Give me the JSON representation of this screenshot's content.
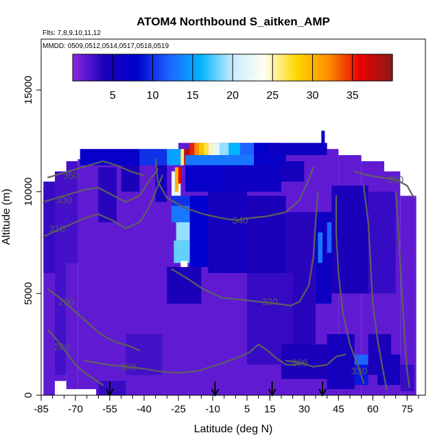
{
  "chart_data": {
    "type": "heatmap",
    "title": "ATOM4 Northbound S_aitken_AMP",
    "flights_label": "Flts: 7,8,9,10,11,12",
    "mmdd_label": "MMDD: 0509,0512,0514,0517,0518,0519",
    "xlabel": "Latitude (deg N)",
    "ylabel": "Altitude (m)",
    "xlim": [
      -85,
      83
    ],
    "ylim": [
      0,
      17500
    ],
    "x_ticks": [
      -85,
      -70,
      -55,
      -40,
      -25,
      -10,
      5,
      15,
      30,
      45,
      60,
      75
    ],
    "x_tick_labels": [
      "-85",
      "-70",
      "-55",
      "-40",
      "-25",
      "-10",
      "5",
      "15",
      "30",
      "45",
      "60",
      "75"
    ],
    "y_ticks": [
      0,
      5000,
      10000,
      15000
    ],
    "y_tick_labels": [
      "0",
      "5000",
      "10000",
      "15000"
    ],
    "colorbar": {
      "range": [
        0,
        40
      ],
      "ticks": [
        5,
        10,
        15,
        20,
        25,
        30,
        35
      ],
      "tick_labels": [
        "5",
        "10",
        "15",
        "20",
        "25",
        "30",
        "35"
      ],
      "colors": [
        "#8a2be2",
        "#1a00b8",
        "#0000cd",
        "#1e64ff",
        "#00b4ff",
        "#c8ecff",
        "#fffff0",
        "#ffd700",
        "#ff8c00",
        "#e60000",
        "#8b1a1a"
      ]
    },
    "background_value": 1.5,
    "cells": [
      {
        "x0": -84,
        "x1": -79,
        "y0": 6000,
        "y1": 10500,
        "v": 3
      },
      {
        "x0": -79,
        "x1": -74,
        "y0": 1000,
        "y1": 11000,
        "v": 2.5
      },
      {
        "x0": -74,
        "x1": -69,
        "y0": 6500,
        "y1": 11500,
        "v": 2.5
      },
      {
        "x0": -60,
        "x1": -52,
        "y0": 8500,
        "y1": 11200,
        "v": 3.5
      },
      {
        "x0": -50,
        "x1": -42,
        "y0": 10000,
        "y1": 11800,
        "v": 4
      },
      {
        "x0": -68,
        "x1": -42,
        "y0": 11300,
        "y1": 12100,
        "v": 7
      },
      {
        "x0": -42,
        "x1": -30,
        "y0": 11300,
        "y1": 12100,
        "v": 10
      },
      {
        "x0": -30,
        "x1": -23,
        "y0": 11300,
        "y1": 12100,
        "v": 15
      },
      {
        "x0": -35,
        "x1": -30,
        "y0": 9500,
        "y1": 11300,
        "v": 5
      },
      {
        "x0": -28,
        "x1": -24,
        "y0": 9800,
        "y1": 11000,
        "v": 22
      },
      {
        "x0": -26.5,
        "x1": -25,
        "y0": 10000,
        "y1": 11200,
        "v": 30
      },
      {
        "x0": -25,
        "x1": -23.5,
        "y0": 10400,
        "y1": 11200,
        "v": 36
      },
      {
        "x0": -24,
        "x1": -22.5,
        "y0": 11300,
        "y1": 12100,
        "v": 26
      },
      {
        "x0": -22.5,
        "x1": -20,
        "y0": 11300,
        "y1": 12100,
        "v": 38
      },
      {
        "x0": -20,
        "x1": -18,
        "y0": 11800,
        "y1": 12400,
        "v": 35
      },
      {
        "x0": -18,
        "x1": -16,
        "y0": 11800,
        "y1": 12400,
        "v": 32
      },
      {
        "x0": -16,
        "x1": -14,
        "y0": 11800,
        "y1": 12400,
        "v": 29
      },
      {
        "x0": -14,
        "x1": -12,
        "y0": 11800,
        "y1": 12400,
        "v": 27
      },
      {
        "x0": -12,
        "x1": -10,
        "y0": 11800,
        "y1": 12400,
        "v": 25
      },
      {
        "x0": -10,
        "x1": -7,
        "y0": 11800,
        "y1": 12400,
        "v": 22
      },
      {
        "x0": -7,
        "x1": -3,
        "y0": 11800,
        "y1": 12400,
        "v": 19
      },
      {
        "x0": -3,
        "x1": 2,
        "y0": 11800,
        "y1": 12400,
        "v": 16
      },
      {
        "x0": 2,
        "x1": 8,
        "y0": 11800,
        "y1": 12400,
        "v": 12
      },
      {
        "x0": 8,
        "x1": 14,
        "y0": 11800,
        "y1": 12400,
        "v": 8
      },
      {
        "x0": 14,
        "x1": 40,
        "y0": 11800,
        "y1": 12400,
        "v": 6
      },
      {
        "x0": -22,
        "x1": 8,
        "y0": 11300,
        "y1": 11800,
        "v": 13
      },
      {
        "x0": 8,
        "x1": 22,
        "y0": 11300,
        "y1": 11800,
        "v": 7
      },
      {
        "x0": -22,
        "x1": -5,
        "y0": 10000,
        "y1": 11300,
        "v": 7
      },
      {
        "x0": -5,
        "x1": 20,
        "y0": 10000,
        "y1": 11300,
        "v": 6
      },
      {
        "x0": 20,
        "x1": 30,
        "y0": 10500,
        "y1": 11500,
        "v": 5
      },
      {
        "x0": -28,
        "x1": -20,
        "y0": 9300,
        "y1": 9800,
        "v": 10
      },
      {
        "x0": -28,
        "x1": -20,
        "y0": 8500,
        "y1": 9300,
        "v": 13
      },
      {
        "x0": -26,
        "x1": -20,
        "y0": 7600,
        "y1": 8500,
        "v": 19
      },
      {
        "x0": -27,
        "x1": -20,
        "y0": 6500,
        "y1": 7600,
        "v": 18
      },
      {
        "x0": -24,
        "x1": -21,
        "y0": 6100,
        "y1": 6600,
        "v": 24
      },
      {
        "x0": -20,
        "x1": -12,
        "y0": 6300,
        "y1": 9800,
        "v": 8
      },
      {
        "x0": -12,
        "x1": 5,
        "y0": 6000,
        "y1": 10000,
        "v": 5
      },
      {
        "x0": -30,
        "x1": -15,
        "y0": 4500,
        "y1": 6300,
        "v": 4
      },
      {
        "x0": 5,
        "x1": 22,
        "y0": 6000,
        "y1": 9800,
        "v": 4
      },
      {
        "x0": 22,
        "x1": 35,
        "y0": 2500,
        "y1": 9000,
        "v": 3.5
      },
      {
        "x0": 35,
        "x1": 42,
        "y0": 4500,
        "y1": 9000,
        "v": 6
      },
      {
        "x0": 36,
        "x1": 38,
        "y0": 6500,
        "y1": 8000,
        "v": 13
      },
      {
        "x0": 40,
        "x1": 42,
        "y0": 7000,
        "y1": 8500,
        "v": 12
      },
      {
        "x0": 45,
        "x1": 58,
        "y0": 9000,
        "y1": 9600,
        "v": 12
      },
      {
        "x0": 54,
        "x1": 58,
        "y0": 8500,
        "y1": 9000,
        "v": 16
      },
      {
        "x0": 42,
        "x1": 58,
        "y0": 5000,
        "y1": 10300,
        "v": 4
      },
      {
        "x0": 58,
        "x1": 70,
        "y0": 5000,
        "y1": 10000,
        "v": 3
      },
      {
        "x0": 5,
        "x1": 25,
        "y0": 1500,
        "y1": 6000,
        "v": 3
      },
      {
        "x0": 20,
        "x1": 40,
        "y0": 800,
        "y1": 2500,
        "v": 4
      },
      {
        "x0": 40,
        "x1": 52,
        "y0": 300,
        "y1": 3000,
        "v": 5
      },
      {
        "x0": 52,
        "x1": 58,
        "y0": 1500,
        "y1": 2000,
        "v": 12
      },
      {
        "x0": 52,
        "x1": 58,
        "y0": 500,
        "y1": 1500,
        "v": 9
      },
      {
        "x0": 58,
        "x1": 68,
        "y0": 1000,
        "y1": 3000,
        "v": 4
      },
      {
        "x0": 62,
        "x1": 72,
        "y0": 500,
        "y1": 2000,
        "v": 5
      },
      {
        "x0": 72,
        "x1": 78,
        "y0": 200,
        "y1": 1500,
        "v": 3
      },
      {
        "x0": -60,
        "x1": -48,
        "y0": 0,
        "y1": 700,
        "v": 3
      },
      {
        "x0": -48,
        "x1": -32,
        "y0": 1000,
        "y1": 3000,
        "v": 2.5
      }
    ],
    "contours": [
      {
        "label": "350",
        "label_at": [
          -72,
          10800
        ],
        "points": [
          [
            -82,
            10700
          ],
          [
            -76,
            10900
          ],
          [
            -70,
            11100
          ],
          [
            -64,
            11300
          ],
          [
            -58,
            11500
          ],
          [
            -52,
            11300
          ],
          [
            -46,
            11000
          ],
          [
            -40,
            10800
          ]
        ]
      },
      {
        "label": "330",
        "label_at": [
          -75,
          9600
        ],
        "points": [
          [
            -84,
            9500
          ],
          [
            -78,
            9700
          ],
          [
            -72,
            9900
          ],
          [
            -66,
            10100
          ],
          [
            -60,
            10200
          ],
          [
            -55,
            9900
          ],
          [
            -48,
            9500
          ],
          [
            -42,
            9800
          ],
          [
            -38,
            10500
          ],
          [
            -34,
            11100
          ]
        ]
      },
      {
        "label": "310",
        "label_at": [
          -78,
          8200
        ],
        "points": [
          [
            -84,
            7800
          ],
          [
            -78,
            8100
          ],
          [
            -72,
            8400
          ],
          [
            -66,
            8700
          ],
          [
            -60,
            8900
          ],
          [
            -54,
            8600
          ],
          [
            -48,
            8200
          ],
          [
            -42,
            8500
          ],
          [
            -38,
            9200
          ],
          [
            -35,
            10000
          ],
          [
            -32,
            10800
          ]
        ]
      },
      {
        "label": "290",
        "label_at": [
          -74,
          4600
        ],
        "points": [
          [
            -82,
            5200
          ],
          [
            -77,
            4800
          ],
          [
            -72,
            4300
          ],
          [
            -68,
            3900
          ],
          [
            -64,
            3500
          ],
          [
            -60,
            3100
          ],
          [
            -56,
            2800
          ],
          [
            -52,
            2600
          ],
          [
            -46,
            2400
          ],
          [
            -42,
            2200
          ]
        ]
      },
      {
        "label": "280",
        "label_at": [
          -76,
          2400
        ],
        "points": [
          [
            -82,
            3200
          ],
          [
            -78,
            2700
          ],
          [
            -74,
            2100
          ],
          [
            -70,
            1500
          ],
          [
            -66,
            1100
          ],
          [
            -62,
            800
          ],
          [
            -58,
            500
          ]
        ]
      },
      {
        "label": "300",
        "label_at": [
          -47,
          1400
        ],
        "points": [
          [
            -66,
            1700
          ],
          [
            -56,
            1500
          ],
          [
            -48,
            1400
          ],
          [
            -40,
            1300
          ],
          [
            -32,
            1150
          ],
          [
            -24,
            1100
          ],
          [
            -16,
            1200
          ],
          [
            -8,
            1500
          ],
          [
            0,
            1800
          ],
          [
            6,
            2100
          ],
          [
            10,
            2500
          ],
          [
            14,
            2200
          ],
          [
            18,
            1800
          ],
          [
            22,
            1500
          ],
          [
            26,
            1500
          ],
          [
            30,
            1600
          ]
        ]
      },
      {
        "label": "300",
        "label_at": [
          28,
          1600
        ],
        "points": [
          [
            22,
            1700
          ],
          [
            28,
            1600
          ],
          [
            34,
            1400
          ],
          [
            40,
            1500
          ],
          [
            44,
            1900
          ],
          [
            48,
            2000
          ]
        ]
      },
      {
        "label": "320",
        "label_at": [
          15,
          4600
        ],
        "points": [
          [
            -28,
            6200
          ],
          [
            -22,
            5800
          ],
          [
            -14,
            5200
          ],
          [
            -6,
            4800
          ],
          [
            2,
            4700
          ],
          [
            10,
            4600
          ],
          [
            18,
            4500
          ],
          [
            24,
            4400
          ],
          [
            28,
            4600
          ],
          [
            32,
            5400
          ],
          [
            34,
            6800
          ],
          [
            35,
            8500
          ],
          [
            36,
            10000
          ]
        ]
      },
      {
        "label": "340",
        "label_at": [
          2,
          8600
        ],
        "points": [
          [
            -35,
            11600
          ],
          [
            -34,
            10500
          ],
          [
            -30,
            9700
          ],
          [
            -22,
            9200
          ],
          [
            -14,
            8900
          ],
          [
            -6,
            8700
          ],
          [
            0,
            8600
          ],
          [
            6,
            8700
          ],
          [
            14,
            8800
          ],
          [
            22,
            9000
          ],
          [
            28,
            9600
          ],
          [
            32,
            10600
          ],
          [
            34,
            11200
          ]
        ]
      },
      {
        "label": "350",
        "label_at": [
          70,
          10600
        ],
        "points": [
          [
            52,
            11000
          ],
          [
            58,
            10800
          ],
          [
            64,
            10700
          ],
          [
            70,
            10600
          ],
          [
            75,
            10300
          ],
          [
            78,
            9700
          ]
        ]
      },
      {
        "label": "330",
        "label_at": [
          54,
          1200
        ],
        "points": [
          [
            44,
            9800
          ],
          [
            44,
            8000
          ],
          [
            45,
            6000
          ],
          [
            47,
            4000
          ],
          [
            50,
            2500
          ],
          [
            54,
            1300
          ],
          [
            56,
            600
          ]
        ]
      },
      {
        "label": "",
        "label_at": [
          0,
          0
        ],
        "points": [
          [
            56,
            10300
          ],
          [
            58,
            8500
          ],
          [
            59,
            6500
          ],
          [
            60,
            4500
          ],
          [
            62,
            2800
          ],
          [
            64,
            1500
          ],
          [
            66,
            300
          ]
        ]
      },
      {
        "label": "",
        "label_at": [
          0,
          0
        ],
        "points": [
          [
            70,
            10000
          ],
          [
            71,
            8500
          ],
          [
            72,
            6500
          ],
          [
            73,
            4500
          ],
          [
            74,
            2800
          ],
          [
            75,
            1200
          ],
          [
            76,
            400
          ]
        ]
      }
    ],
    "flight_arrows_x": [
      -55,
      -9,
      16,
      38
    ]
  }
}
